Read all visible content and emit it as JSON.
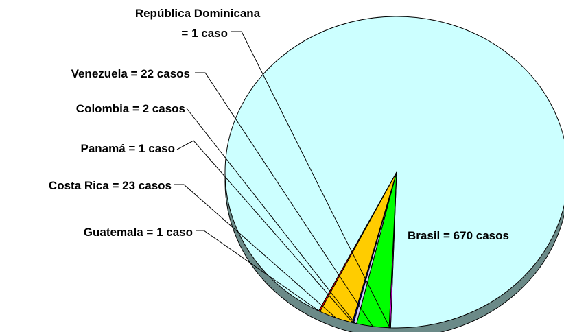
{
  "chart_data": {
    "type": "pie",
    "three_d": true,
    "series": [
      {
        "name": "Brasil",
        "value": 670,
        "label": "Brasil = 670 casos",
        "color": "#ccffff"
      },
      {
        "name": "República Dominicana",
        "value": 1,
        "label_lines": [
          "República Dominicana",
          "= 1 caso"
        ],
        "color": "#ff00ff"
      },
      {
        "name": "Venezuela",
        "value": 22,
        "label": "Venezuela = 22 casos",
        "color": "#00ff00"
      },
      {
        "name": "Colombia",
        "value": 2,
        "label": "Colombia = 2 casos",
        "color": "#ccccff"
      },
      {
        "name": "Panamá",
        "value": 1,
        "label": "Panamá = 1 caso",
        "color": "#000080"
      },
      {
        "name": "Costa Rica",
        "value": 23,
        "label": "Costa Rica = 23 casos",
        "color": "#ffcc00"
      },
      {
        "name": "Guatemala",
        "value": 1,
        "label": "Guatemala = 1 caso",
        "color": "#ff0000"
      }
    ],
    "side_color": "#6b8a88",
    "outline_color": "#000000"
  }
}
